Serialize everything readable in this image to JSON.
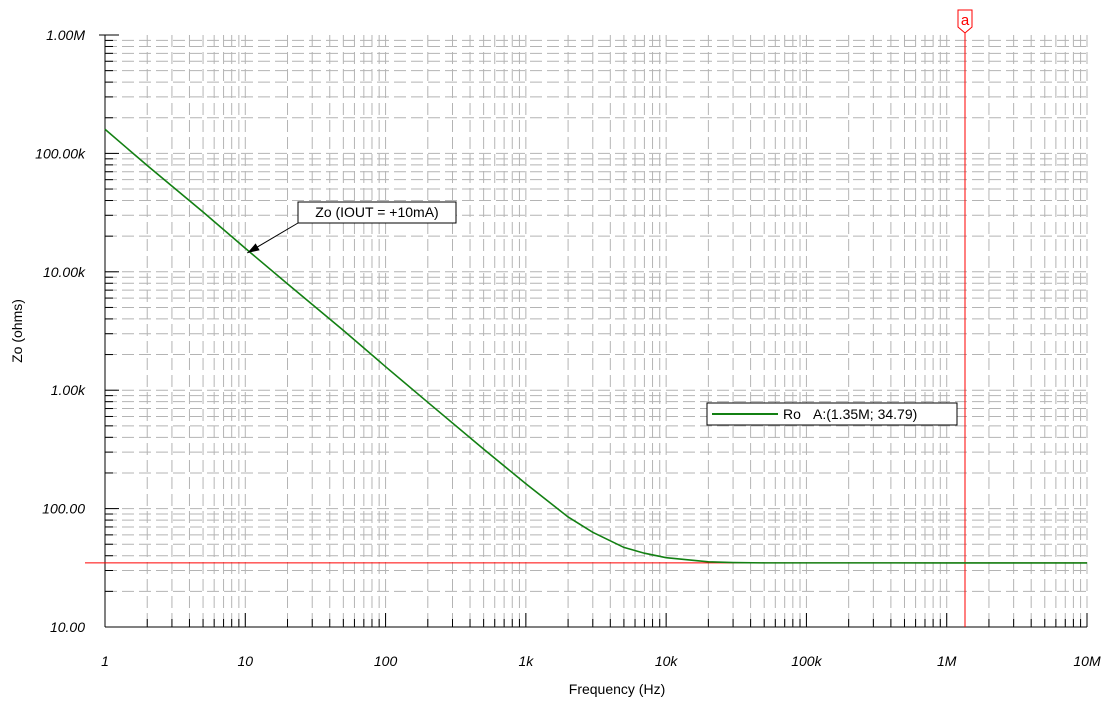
{
  "chart_data": {
    "type": "line",
    "xlabel": "Frequency (Hz)",
    "ylabel": "Zo (ohms)",
    "x_scale": "log",
    "y_scale": "log",
    "xlim": [
      1,
      10000000
    ],
    "ylim": [
      10,
      1000000
    ],
    "grid": true,
    "x_ticks": [
      {
        "value": 1,
        "label": "1"
      },
      {
        "value": 10,
        "label": "10"
      },
      {
        "value": 100,
        "label": "100"
      },
      {
        "value": 1000,
        "label": "1k"
      },
      {
        "value": 10000,
        "label": "10k"
      },
      {
        "value": 100000,
        "label": "100k"
      },
      {
        "value": 1000000,
        "label": "1M"
      },
      {
        "value": 10000000,
        "label": "10M"
      }
    ],
    "y_ticks": [
      {
        "value": 10,
        "label": "10.00"
      },
      {
        "value": 100,
        "label": "100.00"
      },
      {
        "value": 1000,
        "label": "1.00k"
      },
      {
        "value": 10000,
        "label": "10.00k"
      },
      {
        "value": 100000,
        "label": "100.00k"
      },
      {
        "value": 1000000,
        "label": "1.00M"
      }
    ],
    "series": [
      {
        "name": "Ro",
        "color": "#138013",
        "x": [
          1,
          2,
          5,
          10,
          20,
          50,
          100,
          200,
          500,
          1000,
          2000,
          3000,
          5000,
          7000,
          10000,
          20000,
          30000,
          50000,
          100000,
          1000000,
          10000000
        ],
        "y": [
          160000,
          79000,
          32000,
          15800,
          7900,
          3200,
          1580,
          790,
          318,
          162,
          85,
          63,
          47,
          42,
          38.5,
          35.5,
          35,
          34.8,
          34.8,
          34.79,
          34.79
        ]
      }
    ],
    "cursor": {
      "label": "a",
      "x": 1350000,
      "y": 34.79,
      "color": "#ff0000"
    },
    "legend": {
      "entry": "Ro",
      "readout": "A:(1.35M; 34.79)",
      "placement": "right"
    },
    "annotation": {
      "text": "Zo (IOUT = +10mA)",
      "target_x": 10,
      "target_y": 15000
    }
  }
}
